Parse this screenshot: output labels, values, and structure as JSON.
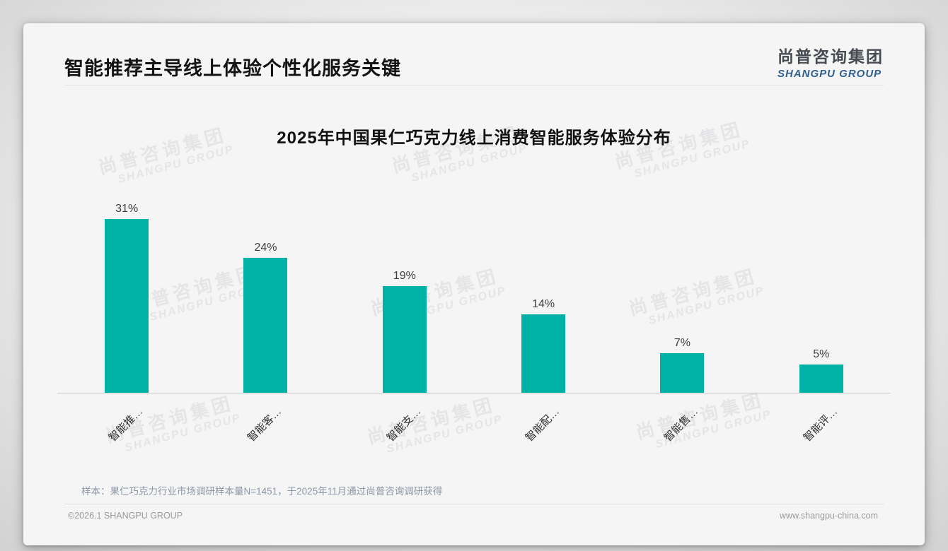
{
  "header": {
    "title": "智能推荐主导线上体验个性化服务关键",
    "logo_cn": "尚普咨询集团",
    "logo_en": "SHANGPU GROUP"
  },
  "watermark": {
    "line1": "尚普咨询集团",
    "line2": "SHANGPU GROUP"
  },
  "chart_data": {
    "type": "bar",
    "title": "2025年中国果仁巧克力线上消费智能服务体验分布",
    "categories": [
      "智能推…",
      "智能客…",
      "智能支…",
      "智能配…",
      "智能售…",
      "智能评…"
    ],
    "values": [
      31,
      24,
      19,
      14,
      7,
      5
    ],
    "data_labels": [
      "31%",
      "24%",
      "19%",
      "14%",
      "7%",
      "5%"
    ],
    "unit": "%",
    "ylim": [
      0,
      35
    ],
    "bar_color": "#00b1a6",
    "grid": false,
    "legend": "none",
    "xlabel": "",
    "ylabel": ""
  },
  "footnote": "样本：果仁巧克力行业市场调研样本量N=1451，于2025年11月通过尚普咨询调研获得",
  "footer": {
    "left": "©2026.1 SHANGPU GROUP",
    "right": "www.shangpu-china.com"
  }
}
